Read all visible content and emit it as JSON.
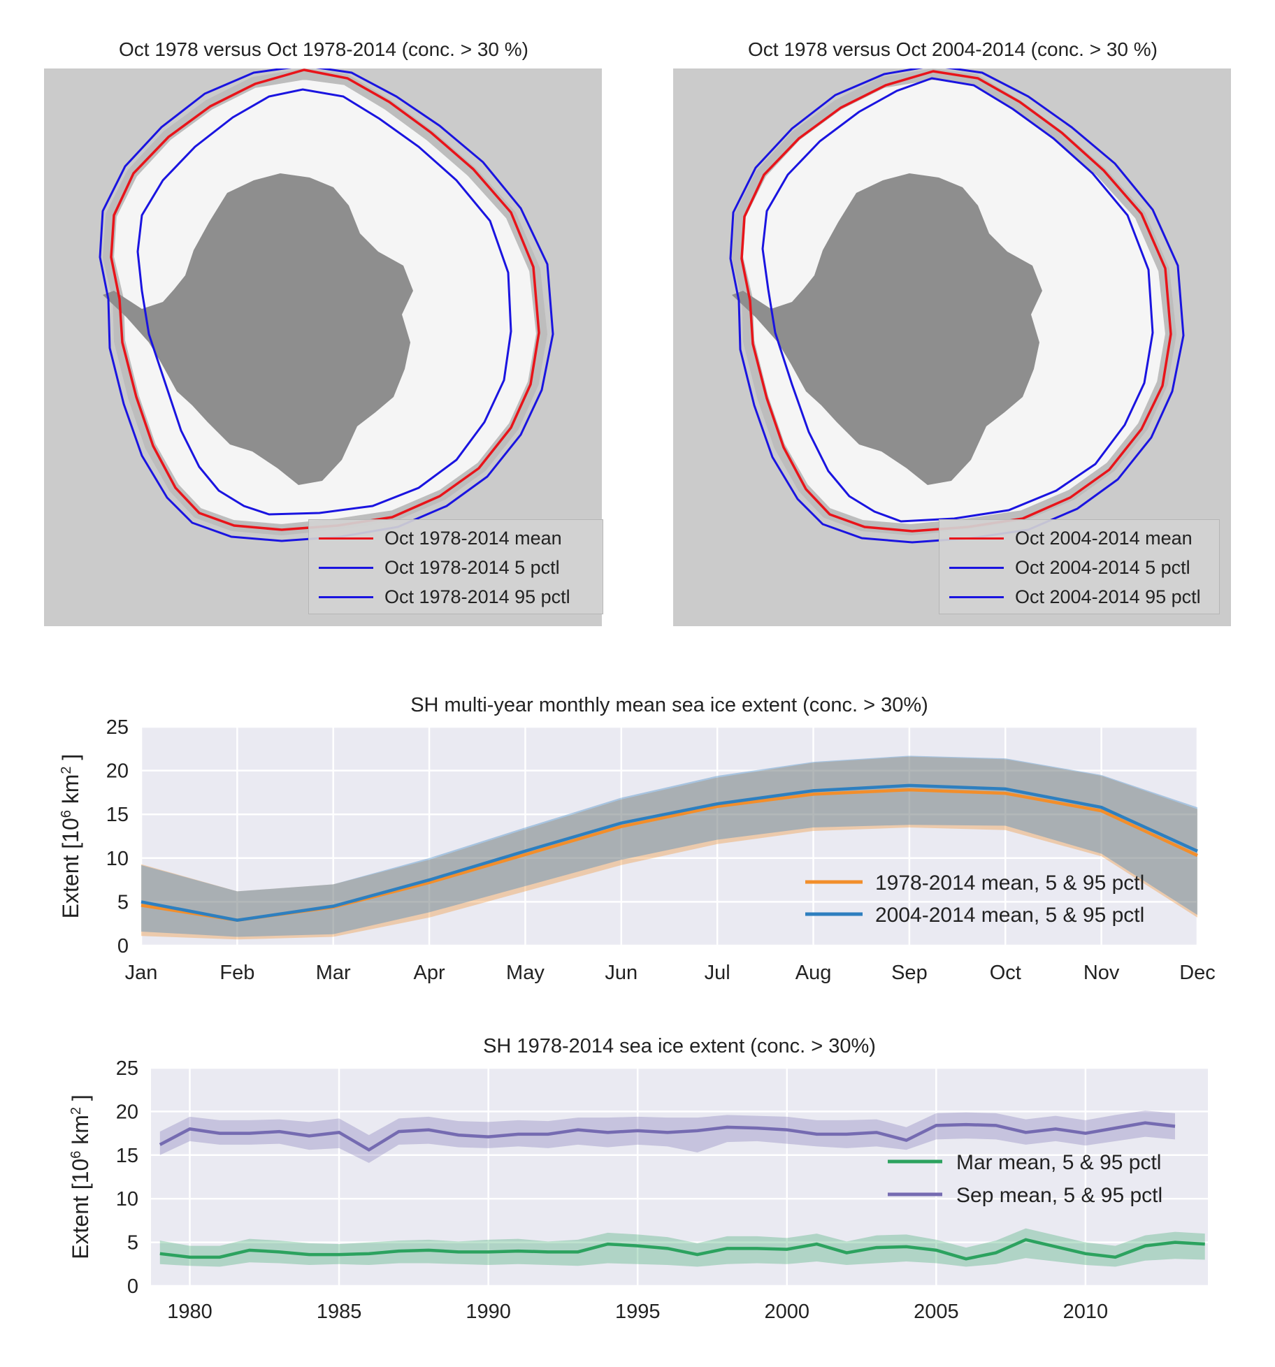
{
  "map_left": {
    "title": "Oct 1978 versus Oct 1978-2014 (conc. > 30 %)",
    "legend": [
      {
        "label": "Oct 1978-2014 mean",
        "color": "#e8141a"
      },
      {
        "label": "Oct 1978-2014 5 pctl",
        "color": "#1a14e0"
      },
      {
        "label": "Oct 1978-2014 95 pctl",
        "color": "#1a14e0"
      }
    ]
  },
  "map_right": {
    "title": "Oct 1978 versus Oct 2004-2014 (conc. > 30 %)",
    "legend": [
      {
        "label": "Oct 2004-2014 mean",
        "color": "#e8141a"
      },
      {
        "label": "Oct 2004-2014 5 pctl",
        "color": "#1a14e0"
      },
      {
        "label": "Oct 2004-2014 95 pctl",
        "color": "#1a14e0"
      }
    ]
  },
  "colors": {
    "ocean": "#cbcbcb",
    "ice": "#f5f5f5",
    "land": "#8e8e8e",
    "mean_line": "#e8141a",
    "pctl_line": "#1a14e0",
    "series_1978": "#f28e2b",
    "series_2004": "#2e7fbf",
    "mar": "#2ca25f",
    "sep": "#756bb1",
    "plot_bg": "#eaeaf2"
  },
  "chart_data": [
    {
      "type": "line",
      "title": "SH multi-year monthly mean sea ice extent (conc. > 30%)",
      "ylabel": "Extent [10^6 km^2]",
      "ylabel_main": "Extent [10",
      "ylabel_exp": "6",
      "ylabel_unit": "km",
      "ylabel_unit_exp": "2",
      "ylabel_close": "]",
      "categories": [
        "Jan",
        "Feb",
        "Mar",
        "Apr",
        "May",
        "Jun",
        "Jul",
        "Aug",
        "Sep",
        "Oct",
        "Nov",
        "Dec"
      ],
      "ylim": [
        0,
        25
      ],
      "yticks": [
        0,
        5,
        10,
        15,
        20,
        25
      ],
      "grid": true,
      "legend_position": "lower-right",
      "series": [
        {
          "name": "1978-2014 mean, 5 & 95 pctl",
          "mean": [
            4.6,
            2.9,
            4.4,
            7.2,
            10.4,
            13.6,
            15.9,
            17.3,
            17.8,
            17.4,
            15.4,
            10.3
          ],
          "p5": [
            1.1,
            0.7,
            1.0,
            3.2,
            6.2,
            9.2,
            11.6,
            13.1,
            13.5,
            13.2,
            10.2,
            3.2
          ],
          "p95": [
            9.3,
            6.2,
            7.0,
            9.8,
            13.3,
            16.7,
            19.2,
            20.9,
            21.6,
            21.3,
            19.4,
            15.6
          ]
        },
        {
          "name": "2004-2014 mean, 5 & 95 pctl",
          "mean": [
            5.0,
            2.9,
            4.5,
            7.5,
            10.8,
            14.0,
            16.2,
            17.7,
            18.3,
            17.9,
            15.8,
            10.8
          ],
          "p5": [
            1.6,
            1.0,
            1.3,
            3.8,
            6.8,
            9.8,
            12.1,
            13.5,
            13.8,
            13.7,
            10.5,
            3.5
          ],
          "p95": [
            9.2,
            6.2,
            7.0,
            10.0,
            13.5,
            16.9,
            19.4,
            21.0,
            21.7,
            21.4,
            19.5,
            15.8
          ]
        }
      ]
    },
    {
      "type": "line",
      "title": "SH 1978-2014 sea ice extent (conc. > 30%)",
      "ylabel": "Extent [10^6 km^2]",
      "ylabel_main": "Extent [10",
      "ylabel_exp": "6",
      "ylabel_unit": "km",
      "ylabel_unit_exp": "2",
      "ylabel_close": "]",
      "xlim": [
        1978.7,
        2014.1
      ],
      "xticks": [
        1980,
        1985,
        1990,
        1995,
        2000,
        2005,
        2010
      ],
      "ylim": [
        0,
        25
      ],
      "yticks": [
        0,
        5,
        10,
        15,
        20,
        25
      ],
      "grid": true,
      "legend_position": "right",
      "series": [
        {
          "name": "Mar mean, 5 & 95 pctl",
          "x": [
            1979,
            1980,
            1981,
            1982,
            1983,
            1984,
            1985,
            1986,
            1987,
            1988,
            1989,
            1990,
            1991,
            1992,
            1993,
            1994,
            1995,
            1996,
            1997,
            1998,
            1999,
            2000,
            2001,
            2002,
            2003,
            2004,
            2005,
            2006,
            2007,
            2008,
            2009,
            2010,
            2011,
            2012,
            2013,
            2014
          ],
          "mean": [
            3.7,
            3.3,
            3.3,
            4.1,
            3.9,
            3.6,
            3.6,
            3.7,
            4.0,
            4.1,
            3.9,
            3.9,
            4.0,
            3.9,
            3.9,
            4.8,
            4.6,
            4.3,
            3.6,
            4.3,
            4.3,
            4.2,
            4.8,
            3.8,
            4.4,
            4.5,
            4.1,
            3.1,
            3.8,
            5.3,
            4.5,
            3.7,
            3.3,
            4.6,
            5.0,
            4.8
          ],
          "p5": [
            2.5,
            2.3,
            2.2,
            2.7,
            2.6,
            2.4,
            2.5,
            2.4,
            2.6,
            2.6,
            2.5,
            2.4,
            2.5,
            2.4,
            2.3,
            2.6,
            2.5,
            2.4,
            2.2,
            2.5,
            2.6,
            2.5,
            2.8,
            2.4,
            2.6,
            2.8,
            2.6,
            2.2,
            2.5,
            3.2,
            2.8,
            2.4,
            2.2,
            2.9,
            3.1,
            3.0
          ],
          "p95": [
            5.2,
            4.6,
            4.6,
            5.4,
            5.2,
            4.9,
            4.8,
            5.0,
            5.2,
            5.3,
            5.1,
            5.3,
            5.4,
            5.1,
            5.3,
            6.1,
            5.9,
            5.6,
            4.9,
            5.7,
            5.7,
            5.5,
            6.0,
            5.1,
            5.8,
            5.9,
            5.3,
            4.4,
            5.2,
            6.6,
            5.8,
            5.0,
            4.6,
            5.8,
            6.2,
            6.0
          ]
        },
        {
          "name": "Sep mean, 5 & 95 pctl",
          "x": [
            1979,
            1980,
            1981,
            1982,
            1983,
            1984,
            1985,
            1986,
            1987,
            1988,
            1989,
            1990,
            1991,
            1992,
            1993,
            1994,
            1995,
            1996,
            1997,
            1998,
            1999,
            2000,
            2001,
            2002,
            2003,
            2004,
            2005,
            2006,
            2007,
            2008,
            2009,
            2010,
            2011,
            2012,
            2013
          ],
          "mean": [
            16.2,
            18.0,
            17.5,
            17.5,
            17.7,
            17.2,
            17.6,
            15.6,
            17.7,
            17.9,
            17.3,
            17.1,
            17.4,
            17.4,
            17.9,
            17.6,
            17.8,
            17.6,
            17.8,
            18.2,
            18.1,
            17.9,
            17.4,
            17.4,
            17.6,
            16.7,
            18.4,
            18.5,
            18.4,
            17.6,
            18.0,
            17.5,
            18.1,
            18.7,
            18.3
          ],
          "p5": [
            15.0,
            16.6,
            16.2,
            16.2,
            16.3,
            15.6,
            15.8,
            14.1,
            16.2,
            16.3,
            15.9,
            15.8,
            16.0,
            15.8,
            16.2,
            15.9,
            16.2,
            16.0,
            15.3,
            16.5,
            16.6,
            16.3,
            16.0,
            15.8,
            16.0,
            15.6,
            16.8,
            16.9,
            16.8,
            16.2,
            16.6,
            16.1,
            16.6,
            17.1,
            16.8
          ],
          "p95": [
            17.7,
            19.4,
            19.0,
            19.0,
            19.1,
            18.8,
            19.2,
            17.3,
            19.2,
            19.4,
            18.9,
            18.8,
            19.0,
            18.9,
            19.3,
            19.3,
            19.4,
            19.3,
            19.3,
            19.6,
            19.5,
            19.4,
            19.0,
            19.0,
            19.1,
            18.2,
            19.8,
            19.9,
            19.8,
            19.1,
            19.5,
            19.0,
            19.6,
            20.1,
            19.8
          ]
        }
      ]
    }
  ]
}
